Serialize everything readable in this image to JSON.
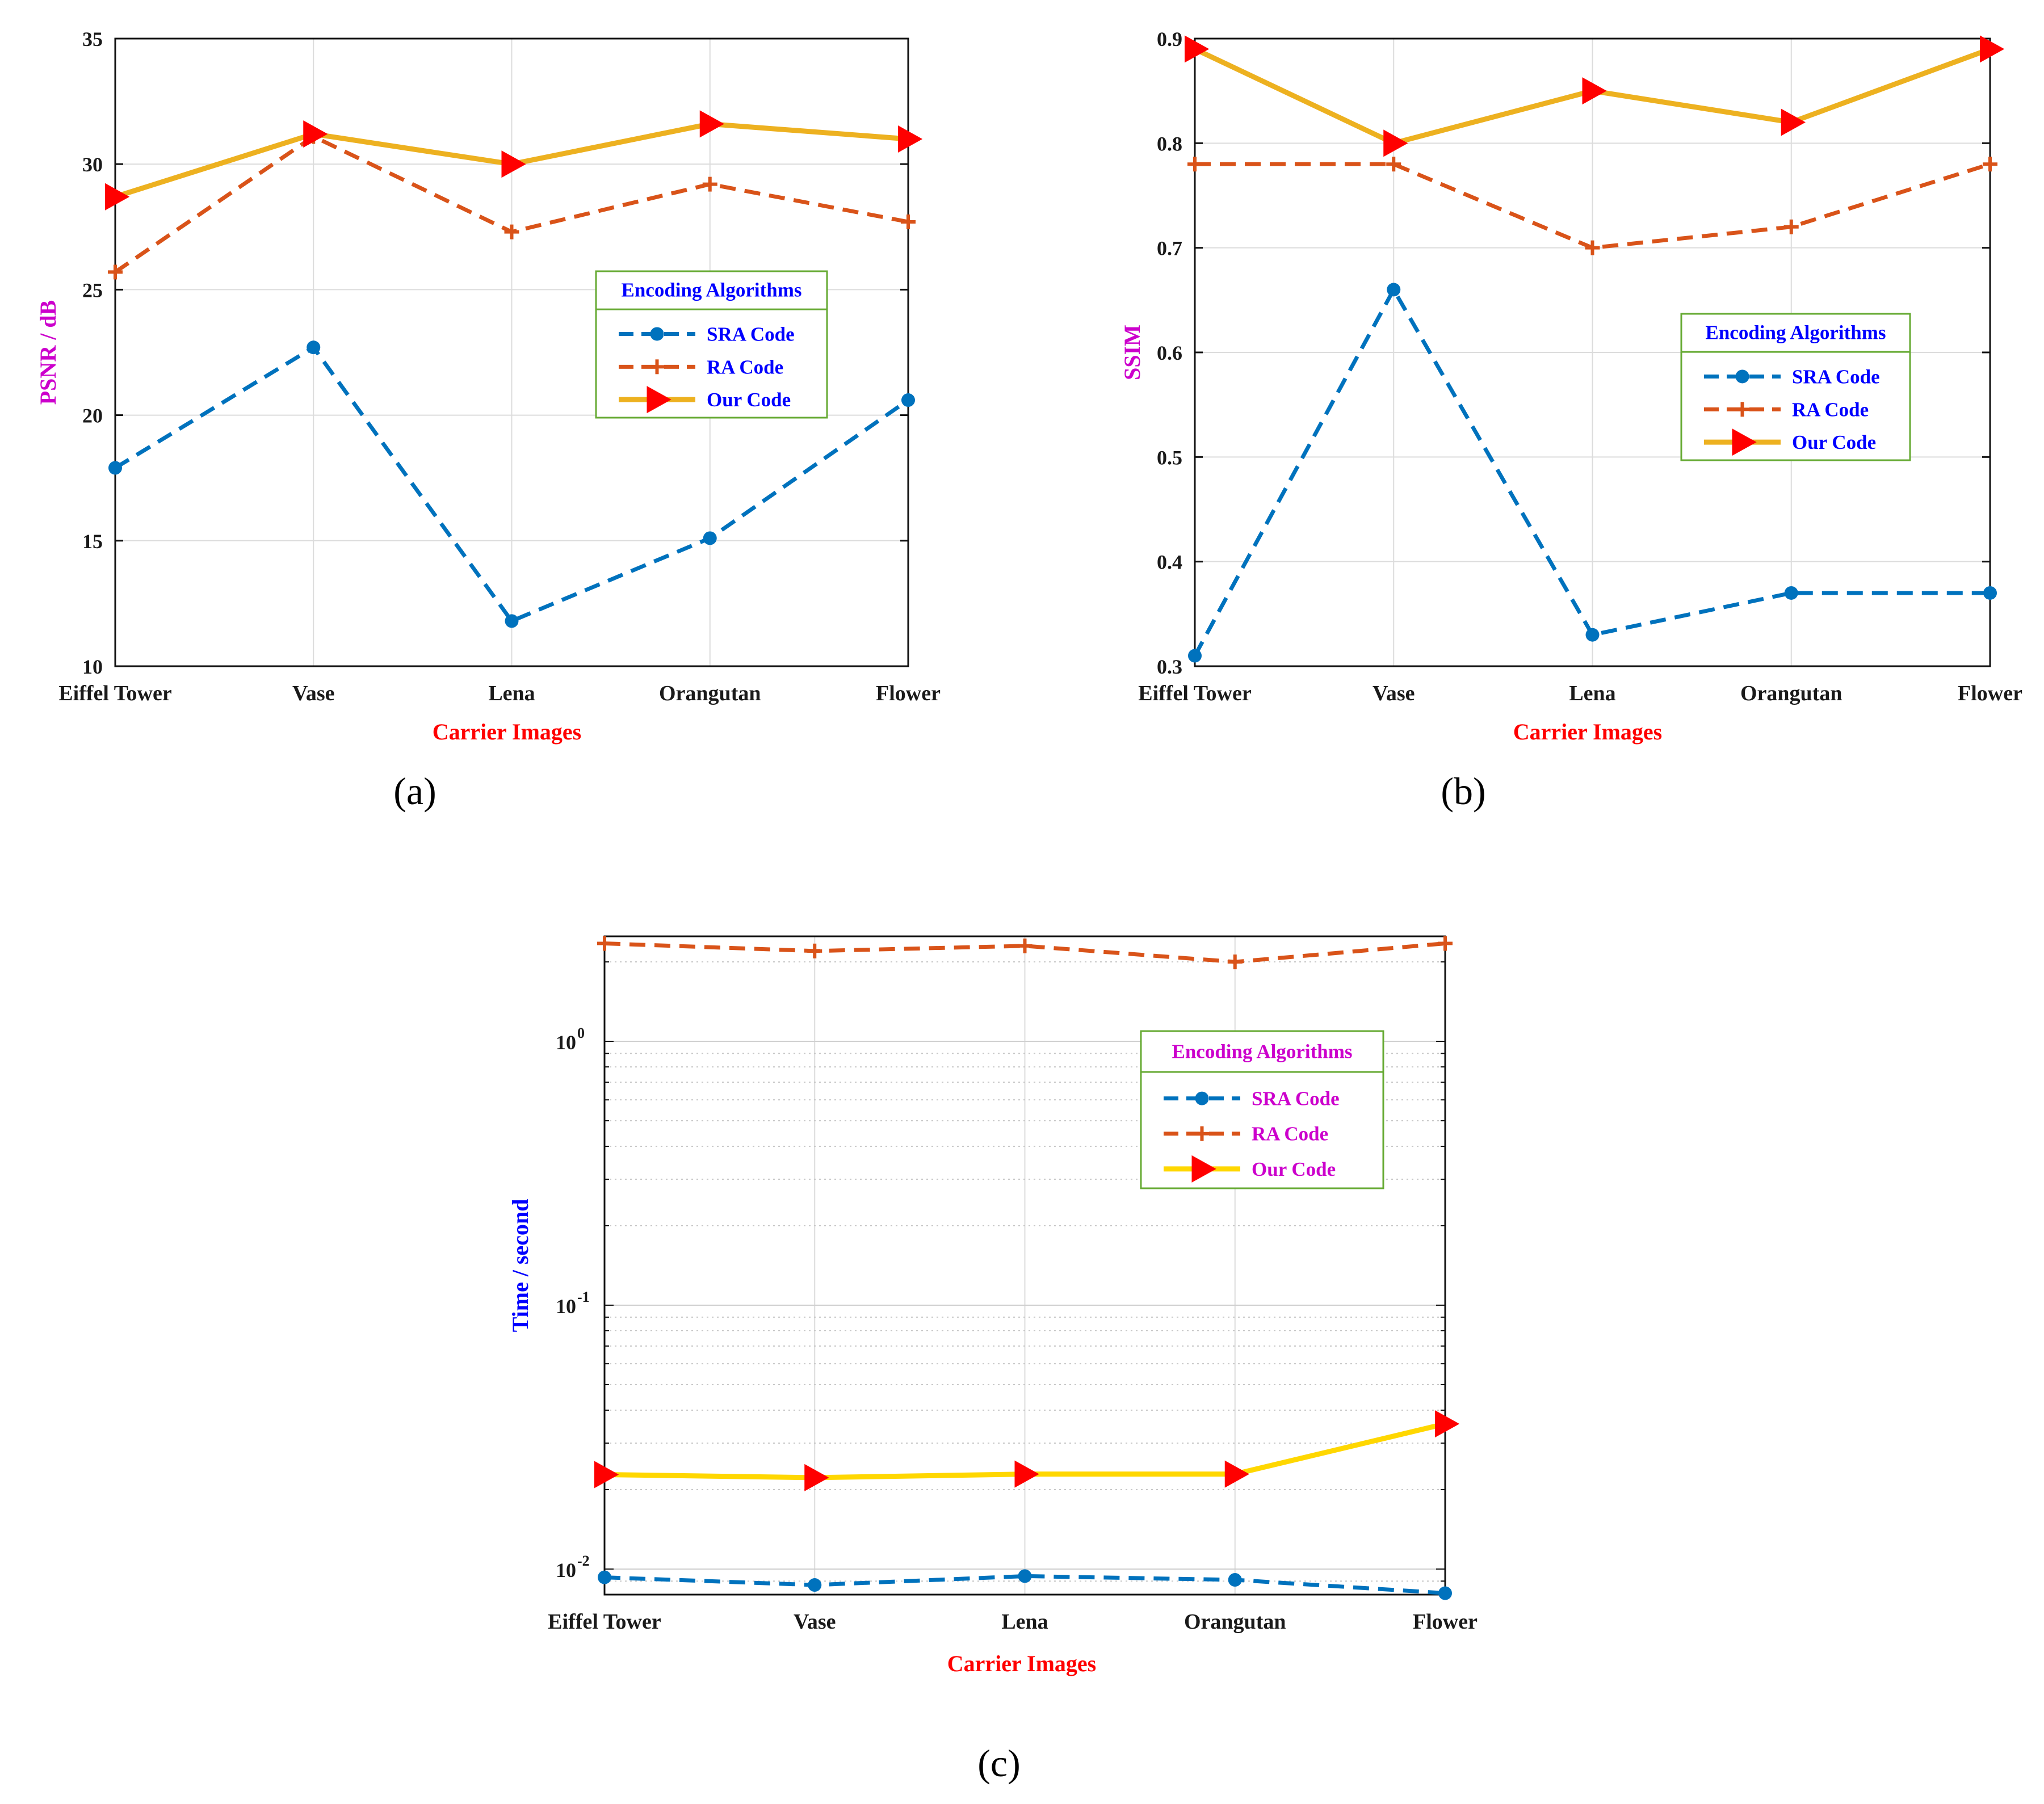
{
  "colors": {
    "sra": "#0072BD",
    "ra": "#D95319",
    "our_ab": "#EDB120",
    "our_c": "#FFD700",
    "marker_red": "#FF0000",
    "xlabel": "#FF0000",
    "ylabel_magenta": "#CC00CC",
    "ylabel_blue": "#0000FF",
    "legend_text_blue": "#0000FF",
    "legend_text_magenta": "#CC00CC",
    "legend_border": "#66AA33"
  },
  "chart_data": [
    {
      "id": "a",
      "type": "line",
      "panel_label": "(a)",
      "title": "",
      "categories": [
        "Eiffel Tower",
        "Vase",
        "Lena",
        "Orangutan",
        "Flower"
      ],
      "xlabel": "Carrier Images",
      "ylabel": "PSNR / dB",
      "yscale": "linear",
      "ylim": [
        10,
        35
      ],
      "yticks": [
        10,
        15,
        20,
        25,
        30,
        35
      ],
      "ytick_labels": [
        "10",
        "15",
        "20",
        "25",
        "30",
        "35"
      ],
      "grid": true,
      "legend": {
        "title": "Encoding Algorithms",
        "placement": "center-right",
        "entries": [
          "SRA Code",
          "RA Code",
          "Our Code"
        ]
      },
      "series": [
        {
          "name": "SRA Code",
          "values": [
            17.9,
            22.7,
            11.8,
            15.1,
            20.6
          ]
        },
        {
          "name": "RA Code",
          "values": [
            25.7,
            31.1,
            27.3,
            29.2,
            27.7
          ]
        },
        {
          "name": "Our Code",
          "values": [
            28.7,
            31.2,
            30.0,
            31.6,
            31.0
          ]
        }
      ]
    },
    {
      "id": "b",
      "type": "line",
      "panel_label": "(b)",
      "title": "",
      "categories": [
        "Eiffel Tower",
        "Vase",
        "Lena",
        "Orangutan",
        "Flower"
      ],
      "xlabel": "Carrier Images",
      "ylabel": "SSIM",
      "yscale": "linear",
      "ylim": [
        0.3,
        0.9
      ],
      "yticks": [
        0.3,
        0.4,
        0.5,
        0.6,
        0.7,
        0.8,
        0.9
      ],
      "ytick_labels": [
        "0.3",
        "0.4",
        "0.5",
        "0.6",
        "0.7",
        "0.8",
        "0.9"
      ],
      "grid": true,
      "legend": {
        "title": "Encoding Algorithms",
        "placement": "center-right",
        "entries": [
          "SRA Code",
          "RA Code",
          "Our Code"
        ]
      },
      "series": [
        {
          "name": "SRA Code",
          "values": [
            0.31,
            0.66,
            0.33,
            0.37,
            0.37
          ]
        },
        {
          "name": "RA Code",
          "values": [
            0.78,
            0.78,
            0.7,
            0.72,
            0.78
          ]
        },
        {
          "name": "Our Code",
          "values": [
            0.89,
            0.8,
            0.85,
            0.82,
            0.89
          ]
        }
      ]
    },
    {
      "id": "c",
      "type": "line",
      "panel_label": "(c)",
      "title": "",
      "categories": [
        "Eiffel Tower",
        "Vase",
        "Lena",
        "Orangutan",
        "Flower"
      ],
      "xlabel": "Carrier Images",
      "ylabel": "Time / second",
      "yscale": "log",
      "ylim": [
        0.008,
        2.5
      ],
      "yticks": [
        0.01,
        0.1,
        1
      ],
      "ytick_labels": [
        {
          "base": "10",
          "exp": "-2"
        },
        {
          "base": "10",
          "exp": "-1"
        },
        {
          "base": "10",
          "exp": "0"
        }
      ],
      "grid": true,
      "legend": {
        "title": "Encoding Algorithms",
        "placement": "upper-right",
        "entries": [
          "SRA Code",
          "RA Code",
          "Our Code"
        ]
      },
      "series": [
        {
          "name": "SRA Code",
          "values": [
            0.0093,
            0.0087,
            0.0094,
            0.0091,
            0.0081
          ]
        },
        {
          "name": "RA Code",
          "values": [
            2.35,
            2.2,
            2.3,
            2.0,
            2.35
          ]
        },
        {
          "name": "Our Code",
          "values": [
            0.0228,
            0.0222,
            0.0229,
            0.0229,
            0.0355
          ]
        }
      ]
    }
  ]
}
